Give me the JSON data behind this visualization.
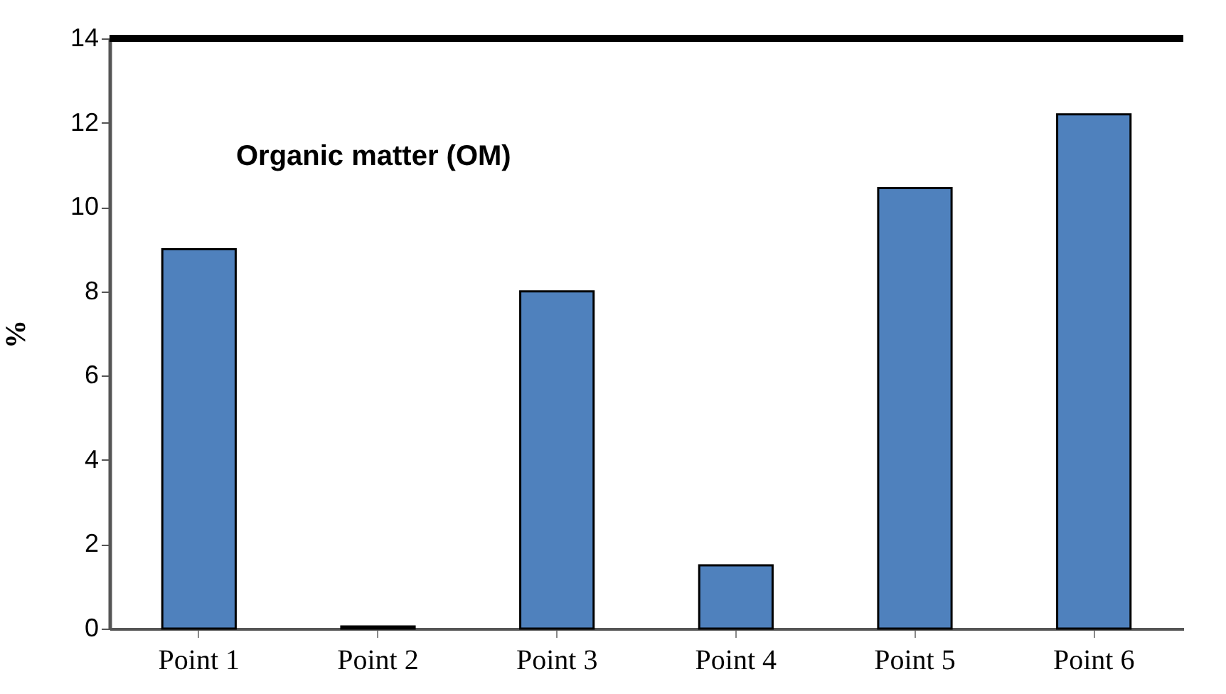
{
  "chart_data": {
    "type": "bar",
    "title": "Organic matter (OM)",
    "ylabel": "%",
    "categories": [
      "Point 1",
      "Point 2",
      "Point 3",
      "Point 4",
      "Point 5",
      "Point 6"
    ],
    "values": [
      9.0,
      0.05,
      8.0,
      1.5,
      10.45,
      12.2
    ],
    "color": "#4f81bd",
    "ylim": [
      0,
      14
    ],
    "yticks": [
      0,
      2,
      4,
      6,
      8,
      10,
      12,
      14
    ],
    "grid": false
  }
}
